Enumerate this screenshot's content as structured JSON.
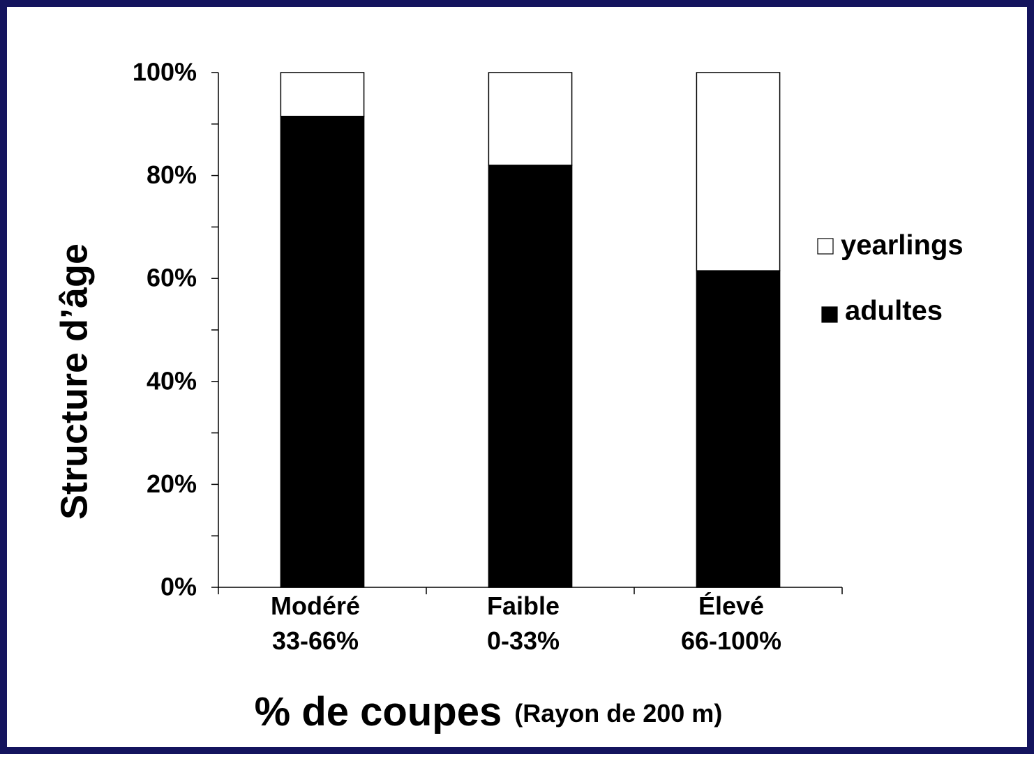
{
  "chart_data": {
    "type": "stacked_bar",
    "ylabel": "Structure d’âge",
    "xlabel": "% de coupes",
    "xlabel_sub": "(Rayon de 200 m)",
    "categories": [
      "Modéré\n33-66%",
      "Faible\n0-33%",
      "Élevé\n66-100%"
    ],
    "series": [
      {
        "name": "adultes",
        "color": "#000000",
        "values": [
          91.5,
          82,
          61.5
        ]
      },
      {
        "name": "yearlings",
        "color": "#ffffff",
        "values": [
          8.5,
          18,
          38.5
        ]
      }
    ],
    "ylim": [
      0,
      100
    ],
    "yticks": [
      {
        "value": 0,
        "label": "0%"
      },
      {
        "value": 20,
        "label": "20%"
      },
      {
        "value": 40,
        "label": "40%"
      },
      {
        "value": 60,
        "label": "60%"
      },
      {
        "value": 80,
        "label": "80%"
      },
      {
        "value": 100,
        "label": "100%"
      }
    ],
    "minor_yticks": [
      10,
      30,
      50,
      70,
      90
    ],
    "legend": "right"
  }
}
